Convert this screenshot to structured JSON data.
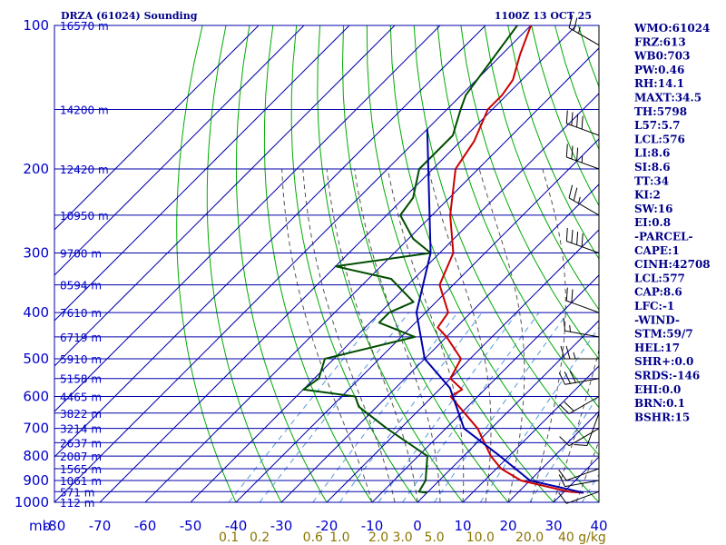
{
  "header": {
    "title": "DRZA (61024) Sounding",
    "time": "1100Z 13 OCT 25"
  },
  "params": [
    "WMO:61024",
    "FRZ:613",
    "WB0:703",
    "PW:0.46",
    "RH:14.1",
    "MAXT:34.5",
    "TH:5798",
    "L57:5.7",
    "LCL:576",
    "LI:8.6",
    "SI:8.6",
    "TT:34",
    "KI:2",
    "SW:16",
    "EI:0.8",
    "-PARCEL-",
    "CAPE:1",
    "CINH:42708",
    "LCL:577",
    "CAP:8.6",
    "LFC:-1",
    "-WIND-",
    "STM:59/7",
    "HEL:17",
    "SHR+:0.0",
    "SRDS:-146",
    "EHI:0.0",
    "BRN:0.1",
    "BSHR:15"
  ],
  "chart_data": {
    "type": "line",
    "title": "DRZA (61024) Sounding",
    "xlabel": "",
    "ylabel": "mb",
    "xlim": [
      -80,
      40
    ],
    "ylim": [
      1000,
      100
    ],
    "pressure_ticks": [
      100,
      200,
      300,
      400,
      500,
      600,
      700,
      800,
      900,
      1000
    ],
    "pressure_tick_labels": [
      "100",
      "200",
      "300",
      "400",
      "500",
      "600",
      "700",
      "800",
      "900",
      "1000"
    ],
    "temp_ticks": [
      -80,
      -70,
      -60,
      -50,
      -40,
      -30,
      -20,
      -10,
      0,
      10,
      20,
      30,
      40
    ],
    "temp_tick_labels": [
      "-80",
      "-70",
      "-60",
      "-50",
      "-40",
      "-30",
      "-20",
      "-10",
      "0",
      "10",
      "20",
      "30",
      "40"
    ],
    "mixing_ratio_labels": [
      "0.1",
      "0.2",
      "0.6",
      "1.0",
      "2.0",
      "3.0",
      "5.0",
      "10.0",
      "20.0",
      "40 g/kg"
    ],
    "heights": [
      {
        "p": 100,
        "label": "16570 m"
      },
      {
        "p": 150,
        "label": "14200 m"
      },
      {
        "p": 200,
        "label": "12420 m"
      },
      {
        "p": 250,
        "label": "10950 m"
      },
      {
        "p": 300,
        "label": "9700 m"
      },
      {
        "p": 350,
        "label": "8594 m"
      },
      {
        "p": 400,
        "label": "7610 m"
      },
      {
        "p": 450,
        "label": "6719 m"
      },
      {
        "p": 500,
        "label": "5910 m"
      },
      {
        "p": 550,
        "label": "5158 m"
      },
      {
        "p": 600,
        "label": "4465 m"
      },
      {
        "p": 650,
        "label": "3822 m"
      },
      {
        "p": 700,
        "label": "3214 m"
      },
      {
        "p": 750,
        "label": "2637 m"
      },
      {
        "p": 800,
        "label": "2087 m"
      },
      {
        "p": 850,
        "label": "1565 m"
      },
      {
        "p": 900,
        "label": "1061 m"
      },
      {
        "p": 950,
        "label": "571 m"
      },
      {
        "p": 1000,
        "label": "112 m"
      }
    ],
    "series": [
      {
        "key": "temperature",
        "color": "#cc0000",
        "points": [
          [
            100,
            -80
          ],
          [
            115,
            -76
          ],
          [
            130,
            -72
          ],
          [
            140,
            -71
          ],
          [
            150,
            -71
          ],
          [
            175,
            -67
          ],
          [
            200,
            -65
          ],
          [
            250,
            -56
          ],
          [
            300,
            -47
          ],
          [
            350,
            -43
          ],
          [
            400,
            -35
          ],
          [
            430,
            -34
          ],
          [
            450,
            -30
          ],
          [
            500,
            -22
          ],
          [
            550,
            -20
          ],
          [
            580,
            -15
          ],
          [
            600,
            -16
          ],
          [
            700,
            -3
          ],
          [
            800,
            6
          ],
          [
            850,
            11
          ],
          [
            900,
            18
          ],
          [
            950,
            31
          ],
          [
            955,
            34.5
          ]
        ]
      },
      {
        "key": "dewpoint",
        "color": "#004d00",
        "points": [
          [
            100,
            -83
          ],
          [
            140,
            -79
          ],
          [
            150,
            -77
          ],
          [
            170,
            -73
          ],
          [
            200,
            -73
          ],
          [
            230,
            -68
          ],
          [
            250,
            -67
          ],
          [
            280,
            -59
          ],
          [
            300,
            -52
          ],
          [
            320,
            -70
          ],
          [
            340,
            -55
          ],
          [
            380,
            -45
          ],
          [
            400,
            -48
          ],
          [
            420,
            -48
          ],
          [
            450,
            -37
          ],
          [
            500,
            -52
          ],
          [
            550,
            -49
          ],
          [
            580,
            -50
          ],
          [
            600,
            -37
          ],
          [
            630,
            -34
          ],
          [
            700,
            -23
          ],
          [
            800,
            -8
          ],
          [
            900,
            -3
          ],
          [
            950,
            -2
          ],
          [
            955,
            0
          ]
        ]
      },
      {
        "key": "parcel",
        "color": "#0000aa",
        "points": [
          [
            165,
            -80
          ],
          [
            300,
            -52
          ],
          [
            400,
            -42
          ],
          [
            500,
            -30
          ],
          [
            576,
            -18
          ],
          [
            700,
            -6
          ],
          [
            800,
            8
          ],
          [
            900,
            20
          ],
          [
            955,
            34.5
          ]
        ]
      }
    ],
    "wind_barbs": [
      {
        "p": 110,
        "dir": 300,
        "spd": 25
      },
      {
        "p": 170,
        "dir": 290,
        "spd": 40
      },
      {
        "p": 200,
        "dir": 290,
        "spd": 35
      },
      {
        "p": 250,
        "dir": 300,
        "spd": 25
      },
      {
        "p": 300,
        "dir": 290,
        "spd": 40
      },
      {
        "p": 400,
        "dir": 290,
        "spd": 20
      },
      {
        "p": 450,
        "dir": 280,
        "spd": 15
      },
      {
        "p": 500,
        "dir": 270,
        "spd": 25
      },
      {
        "p": 550,
        "dir": 260,
        "spd": 30
      },
      {
        "p": 600,
        "dir": 240,
        "spd": 20
      },
      {
        "p": 650,
        "dir": 200,
        "spd": 10
      },
      {
        "p": 700,
        "dir": 240,
        "spd": 10
      },
      {
        "p": 850,
        "dir": 250,
        "spd": 10
      },
      {
        "p": 900,
        "dir": 260,
        "spd": 10
      },
      {
        "p": 950,
        "dir": 250,
        "spd": 10
      }
    ],
    "grid": true,
    "legend": "none"
  },
  "colors": {
    "grid": "#0000aa",
    "dry_adiabat": "#00aa00",
    "moist_adiabat": "#555555",
    "mixing_ratio": "#5599dd",
    "text": "#00008b"
  }
}
